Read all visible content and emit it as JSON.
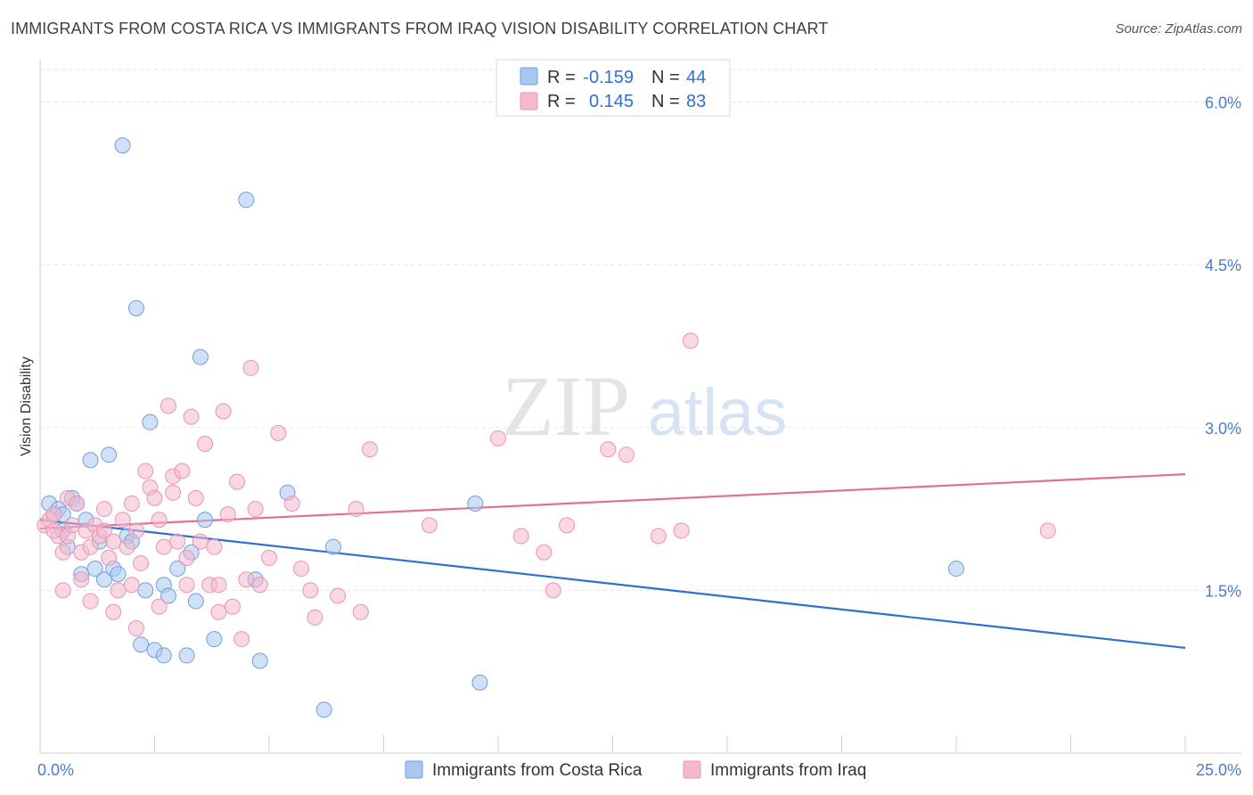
{
  "header": {
    "title": "IMMIGRANTS FROM COSTA RICA VS IMMIGRANTS FROM IRAQ VISION DISABILITY CORRELATION CHART",
    "source": "Source: ZipAtlas.com"
  },
  "watermark": {
    "zip": "ZIP",
    "atlas": "atlas"
  },
  "legend": {
    "rows": [
      {
        "r_label": "R =",
        "r_value": "-0.159",
        "n_label": "N =",
        "n_value": "44",
        "color": "#a9c8f0"
      },
      {
        "r_label": "R =",
        "r_value": "0.145",
        "n_label": "N =",
        "n_value": "83",
        "color": "#f6b8cc"
      }
    ]
  },
  "bottom_legend": [
    {
      "label": "Immigrants from Costa Rica",
      "color": "#a9c8f0"
    },
    {
      "label": "Immigrants from Iraq",
      "color": "#f6b8cc"
    }
  ],
  "chart_data": {
    "type": "scatter",
    "ylabel": "Vision Disability",
    "xlim": [
      0,
      25
    ],
    "ylim": [
      0,
      6.3
    ],
    "y_ticks": [
      {
        "value": 1.5,
        "label": "1.5%"
      },
      {
        "value": 3.0,
        "label": "3.0%"
      },
      {
        "value": 4.5,
        "label": "4.5%"
      },
      {
        "value": 6.0,
        "label": "6.0%"
      }
    ],
    "x_tick_labels": [
      {
        "value": 0,
        "label": "0.0%"
      },
      {
        "value": 25,
        "label": "25.0%"
      }
    ],
    "series": [
      {
        "name": "Immigrants from Costa Rica",
        "color": "#a9c8f0",
        "stroke": "#6f9fdc",
        "trend": {
          "x": [
            0,
            25
          ],
          "y": [
            2.15,
            0.97
          ],
          "color": "#2f6fd1"
        },
        "points": [
          [
            0.2,
            2.3
          ],
          [
            0.3,
            2.2
          ],
          [
            0.4,
            2.25
          ],
          [
            0.5,
            2.05
          ],
          [
            0.5,
            2.2
          ],
          [
            0.6,
            1.9
          ],
          [
            0.7,
            2.35
          ],
          [
            0.8,
            2.3
          ],
          [
            0.9,
            1.65
          ],
          [
            1.0,
            2.15
          ],
          [
            1.1,
            2.7
          ],
          [
            1.2,
            1.7
          ],
          [
            1.3,
            1.95
          ],
          [
            1.4,
            1.6
          ],
          [
            1.5,
            2.75
          ],
          [
            1.6,
            1.7
          ],
          [
            1.7,
            1.65
          ],
          [
            1.8,
            5.6
          ],
          [
            1.9,
            2.0
          ],
          [
            2.0,
            1.95
          ],
          [
            2.1,
            4.1
          ],
          [
            2.2,
            1.0
          ],
          [
            2.3,
            1.5
          ],
          [
            2.4,
            3.05
          ],
          [
            2.5,
            0.95
          ],
          [
            2.7,
            1.55
          ],
          [
            2.7,
            0.9
          ],
          [
            2.8,
            1.45
          ],
          [
            3.0,
            1.7
          ],
          [
            3.2,
            0.9
          ],
          [
            3.3,
            1.85
          ],
          [
            3.4,
            1.4
          ],
          [
            3.5,
            3.65
          ],
          [
            3.6,
            2.15
          ],
          [
            3.8,
            1.05
          ],
          [
            4.5,
            5.1
          ],
          [
            4.7,
            1.6
          ],
          [
            4.8,
            0.85
          ],
          [
            5.4,
            2.4
          ],
          [
            6.2,
            0.4
          ],
          [
            6.4,
            1.9
          ],
          [
            9.5,
            2.3
          ],
          [
            9.6,
            0.65
          ],
          [
            20.0,
            1.7
          ]
        ]
      },
      {
        "name": "Immigrants from Iraq",
        "color": "#f6b8cc",
        "stroke": "#e894b1",
        "trend": {
          "x": [
            0,
            25
          ],
          "y": [
            2.07,
            2.57
          ],
          "color": "#e0709a"
        },
        "points": [
          [
            0.1,
            2.1
          ],
          [
            0.2,
            2.15
          ],
          [
            0.3,
            2.2
          ],
          [
            0.4,
            2.0
          ],
          [
            0.5,
            1.85
          ],
          [
            0.6,
            2.0
          ],
          [
            0.6,
            2.35
          ],
          [
            0.7,
            2.1
          ],
          [
            0.8,
            2.3
          ],
          [
            0.9,
            1.85
          ],
          [
            1.0,
            2.05
          ],
          [
            1.1,
            1.9
          ],
          [
            1.2,
            2.1
          ],
          [
            1.3,
            2.0
          ],
          [
            1.4,
            2.25
          ],
          [
            1.5,
            1.8
          ],
          [
            1.6,
            1.95
          ],
          [
            1.7,
            1.5
          ],
          [
            1.8,
            2.15
          ],
          [
            1.9,
            1.9
          ],
          [
            2.0,
            2.3
          ],
          [
            2.1,
            2.05
          ],
          [
            2.2,
            1.75
          ],
          [
            2.3,
            2.6
          ],
          [
            2.4,
            2.45
          ],
          [
            2.5,
            2.35
          ],
          [
            2.6,
            2.15
          ],
          [
            2.7,
            1.9
          ],
          [
            2.8,
            3.2
          ],
          [
            2.9,
            2.55
          ],
          [
            3.0,
            1.95
          ],
          [
            3.1,
            2.6
          ],
          [
            3.2,
            1.8
          ],
          [
            3.3,
            3.1
          ],
          [
            3.4,
            2.35
          ],
          [
            3.5,
            1.95
          ],
          [
            3.6,
            2.85
          ],
          [
            3.7,
            1.55
          ],
          [
            3.8,
            1.9
          ],
          [
            3.9,
            1.55
          ],
          [
            4.0,
            3.15
          ],
          [
            4.1,
            2.2
          ],
          [
            4.2,
            1.35
          ],
          [
            4.3,
            2.5
          ],
          [
            4.4,
            1.05
          ],
          [
            4.5,
            1.6
          ],
          [
            4.6,
            3.55
          ],
          [
            4.7,
            2.25
          ],
          [
            4.8,
            1.55
          ],
          [
            5.0,
            1.8
          ],
          [
            5.2,
            2.95
          ],
          [
            5.5,
            2.3
          ],
          [
            5.7,
            1.7
          ],
          [
            5.9,
            1.5
          ],
          [
            6.0,
            1.25
          ],
          [
            6.5,
            1.45
          ],
          [
            6.9,
            2.25
          ],
          [
            7.0,
            1.3
          ],
          [
            7.2,
            2.8
          ],
          [
            8.5,
            2.1
          ],
          [
            10.0,
            2.9
          ],
          [
            10.5,
            2.0
          ],
          [
            11.0,
            1.85
          ],
          [
            11.2,
            1.5
          ],
          [
            11.5,
            2.1
          ],
          [
            12.4,
            2.8
          ],
          [
            12.8,
            2.75
          ],
          [
            13.5,
            2.0
          ],
          [
            14.0,
            2.05
          ],
          [
            14.2,
            3.8
          ],
          [
            22.0,
            2.05
          ],
          [
            1.6,
            1.3
          ],
          [
            2.1,
            1.15
          ],
          [
            1.1,
            1.4
          ],
          [
            0.3,
            2.05
          ],
          [
            0.9,
            1.6
          ],
          [
            2.6,
            1.35
          ],
          [
            3.9,
            1.3
          ],
          [
            1.4,
            2.05
          ],
          [
            2.0,
            1.55
          ],
          [
            0.5,
            1.5
          ],
          [
            3.2,
            1.55
          ],
          [
            2.9,
            2.4
          ]
        ]
      }
    ]
  }
}
